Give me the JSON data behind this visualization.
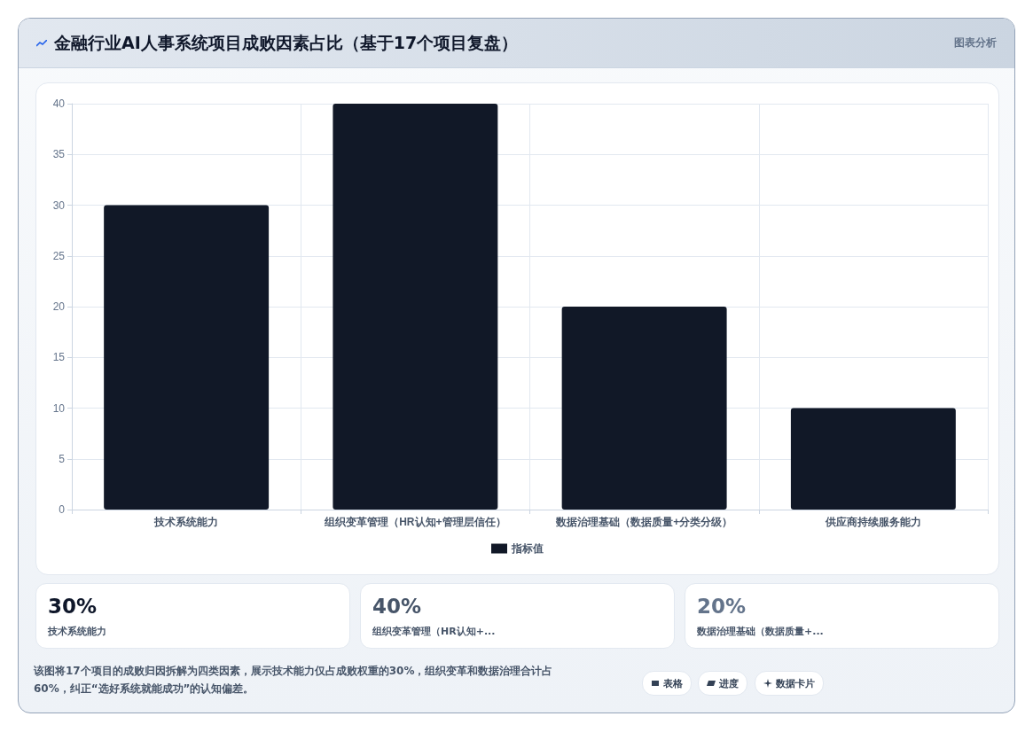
{
  "chart_data": {
    "type": "bar",
    "title": "金融行业AI人事系统项目成败因素占比（基于17个项目复盘）",
    "categories": [
      "技术系统能力",
      "组织变革管理（HR认知+管理层信任）",
      "数据治理基础（数据质量+分类分级）",
      "供应商持续服务能力"
    ],
    "series": [
      {
        "name": "指标值",
        "color": "#111827",
        "values": [
          30,
          40,
          20,
          10
        ]
      }
    ],
    "ylim": [
      0,
      40
    ],
    "yticks": [
      0,
      5,
      10,
      15,
      20,
      25,
      30,
      35,
      40
    ],
    "grid": true,
    "legend": "bottom",
    "annotations": [
      "图表分析",
      "30%",
      "技术系统能力",
      "40%",
      "组织变革管理（HR认知+...",
      "20%",
      "数据治理基础（数据质量+...",
      "该图将17个项目的成败归因拆解为四类因素，展示技术能力仅占成败权重的30%，组织变革和数据治理合计占60%，纠正“选好系统就能成功”的认知偏差。",
      "表格",
      "进度",
      "数据卡片"
    ]
  }
}
